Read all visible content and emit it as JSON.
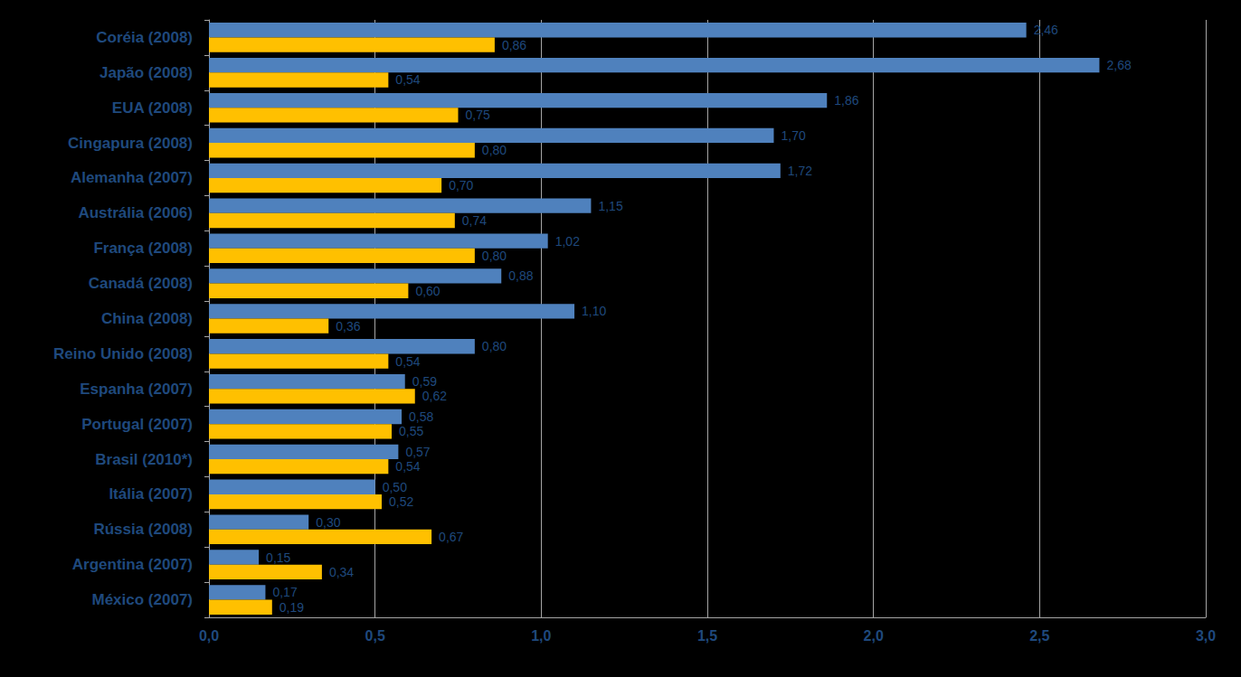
{
  "chart_data": {
    "type": "bar",
    "orientation": "horizontal",
    "categories": [
      "Coréia (2008)",
      "Japão (2008)",
      "EUA (2008)",
      "Cingapura (2008)",
      "Alemanha (2007)",
      "Austrália (2006)",
      "França (2008)",
      "Canadá (2008)",
      "China (2008)",
      "Reino Unido (2008)",
      "Espanha (2007)",
      "Portugal (2007)",
      "Brasil (2010*)",
      "Itália (2007)",
      "Rússia (2008)",
      "Argentina (2007)",
      "México (2007)"
    ],
    "series": [
      {
        "color": "#4f81bd",
        "values": [
          2.46,
          2.68,
          1.86,
          1.7,
          1.72,
          1.15,
          1.02,
          0.88,
          1.1,
          0.8,
          0.59,
          0.58,
          0.57,
          0.5,
          0.3,
          0.15,
          0.17
        ],
        "value_labels": [
          "2,46",
          "2,68",
          "1,86",
          "1,70",
          "1,72",
          "1,15",
          "1,02",
          "0,88",
          "1,10",
          "0,80",
          "0,59",
          "0,58",
          "0,57",
          "0,50",
          "0,30",
          "0,15",
          "0,17"
        ]
      },
      {
        "color": "#ffc000",
        "values": [
          0.86,
          0.54,
          0.75,
          0.8,
          0.7,
          0.74,
          0.8,
          0.6,
          0.36,
          0.54,
          0.62,
          0.55,
          0.54,
          0.52,
          0.67,
          0.34,
          0.19
        ],
        "value_labels": [
          "0,86",
          "0,54",
          "0,75",
          "0,80",
          "0,70",
          "0,74",
          "0,80",
          "0,60",
          "0,36",
          "0,54",
          "0,62",
          "0,55",
          "0,54",
          "0,52",
          "0,67",
          "0,34",
          "0,19"
        ]
      }
    ],
    "xlim": [
      0,
      3
    ],
    "xticks": [
      {
        "value": 0,
        "label": "0,0"
      },
      {
        "value": 0.5,
        "label": "0,5"
      },
      {
        "value": 1,
        "label": "1,0"
      },
      {
        "value": 1.5,
        "label": "1,5"
      },
      {
        "value": 2,
        "label": "2,0"
      },
      {
        "value": 2.5,
        "label": "2,5"
      },
      {
        "value": 3,
        "label": "3,0"
      }
    ],
    "grid": true,
    "data_labels": true
  }
}
